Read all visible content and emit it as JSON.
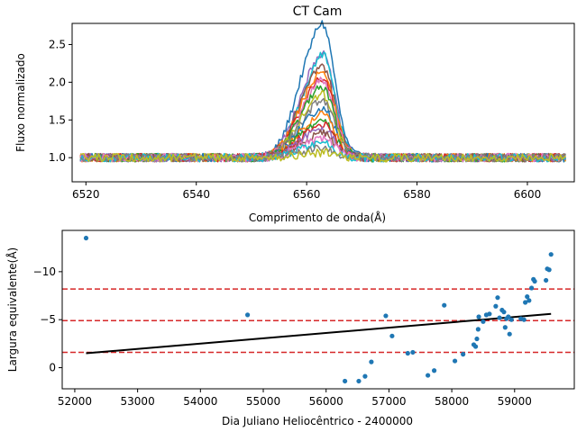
{
  "chart_data": [
    {
      "type": "line",
      "title": "CT Cam",
      "xlabel": "Comprimento de onda(Å)",
      "ylabel": "Fluxo normalizado",
      "xlim": [
        6517.5,
        6608.5
      ],
      "ylim": [
        0.68,
        2.78
      ],
      "x_ticks": [
        6520,
        6540,
        6560,
        6580,
        6600
      ],
      "y_ticks": [
        1.0,
        1.5,
        2.0,
        2.5
      ],
      "x_tick_labels": [
        "6520",
        "6540",
        "6560",
        "6580",
        "6600"
      ],
      "y_tick_labels": [
        "1.0",
        "1.5",
        "2.0",
        "2.5"
      ],
      "grid": false,
      "wavelength_range": [
        6519,
        6607
      ],
      "line_center": 6562,
      "line_widths_sigma": [
        3.0,
        1.8
      ],
      "profiles": [
        {
          "color": "#1f77b4",
          "peak_height": 1.65,
          "secondary_peak": 1.58
        },
        {
          "color": "#9467bd",
          "peak_height": 1.3,
          "secondary_peak": 1.2
        },
        {
          "color": "#17becf",
          "peak_height": 1.2,
          "secondary_peak": 1.3
        },
        {
          "color": "#8c564b",
          "peak_height": 1.15,
          "secondary_peak": 1.05
        },
        {
          "color": "#ff7f0e",
          "peak_height": 1.08,
          "secondary_peak": 1.0
        },
        {
          "color": "#d62728",
          "peak_height": 1.0,
          "secondary_peak": 0.92
        },
        {
          "color": "#e377c2",
          "peak_height": 0.95,
          "secondary_peak": 0.9
        },
        {
          "color": "#2ca02c",
          "peak_height": 0.88,
          "secondary_peak": 0.8
        },
        {
          "color": "#bcbd22",
          "peak_height": 0.8,
          "secondary_peak": 0.72
        },
        {
          "color": "#7f7f7f",
          "peak_height": 0.72,
          "secondary_peak": 0.65
        },
        {
          "color": "#1f77b4",
          "peak_height": 0.62,
          "secondary_peak": 0.58
        },
        {
          "color": "#ff7f0e",
          "peak_height": 0.55,
          "secondary_peak": 0.5
        },
        {
          "color": "#2ca02c",
          "peak_height": 0.48,
          "secondary_peak": 0.42
        },
        {
          "color": "#d62728",
          "peak_height": 0.42,
          "secondary_peak": 0.38
        },
        {
          "color": "#9467bd",
          "peak_height": 0.36,
          "secondary_peak": 0.33
        },
        {
          "color": "#8c564b",
          "peak_height": 0.3,
          "secondary_peak": 0.28
        },
        {
          "color": "#e377c2",
          "peak_height": 0.25,
          "secondary_peak": 0.22
        },
        {
          "color": "#17becf",
          "peak_height": 0.18,
          "secondary_peak": 0.16
        },
        {
          "color": "#7f7f7f",
          "peak_height": 0.12,
          "secondary_peak": 0.1
        },
        {
          "color": "#bcbd22",
          "peak_height": 0.06,
          "secondary_peak": 0.05
        }
      ]
    },
    {
      "type": "scatter",
      "xlabel": "Dia Juliano Heliocêntrico - 2400000",
      "ylabel": "Largura equivalente(Å)",
      "xlim": [
        51800,
        59950
      ],
      "ylim": [
        2.2,
        -14.3
      ],
      "y_inverted": true,
      "x_ticks": [
        52000,
        53000,
        54000,
        55000,
        56000,
        57000,
        58000,
        59000
      ],
      "y_ticks": [
        0,
        -5,
        -10
      ],
      "x_tick_labels": [
        "52000",
        "53000",
        "54000",
        "55000",
        "56000",
        "57000",
        "58000",
        "59000"
      ],
      "y_tick_labels": [
        "0",
        "−5",
        "−10"
      ],
      "grid": false,
      "point_color": "#1f77b4",
      "points": [
        [
          52180,
          -13.5
        ],
        [
          54750,
          -5.5
        ],
        [
          56300,
          1.4
        ],
        [
          56520,
          1.4
        ],
        [
          56620,
          0.9
        ],
        [
          56720,
          -0.6
        ],
        [
          56950,
          -5.4
        ],
        [
          57050,
          -3.3
        ],
        [
          57300,
          -1.5
        ],
        [
          57380,
          -1.6
        ],
        [
          57620,
          0.8
        ],
        [
          57720,
          0.3
        ],
        [
          57880,
          -6.5
        ],
        [
          58050,
          -0.7
        ],
        [
          58180,
          -1.4
        ],
        [
          58350,
          -2.4
        ],
        [
          58380,
          -2.2
        ],
        [
          58400,
          -3.0
        ],
        [
          58420,
          -4.0
        ],
        [
          58430,
          -5.3
        ],
        [
          58500,
          -4.8
        ],
        [
          58550,
          -5.5
        ],
        [
          58600,
          -5.6
        ],
        [
          58700,
          -6.4
        ],
        [
          58730,
          -7.3
        ],
        [
          58760,
          -5.2
        ],
        [
          58800,
          -6.0
        ],
        [
          58830,
          -5.8
        ],
        [
          58850,
          -4.2
        ],
        [
          58870,
          -5.1
        ],
        [
          58900,
          -5.3
        ],
        [
          58920,
          -3.5
        ],
        [
          58950,
          -5.0
        ],
        [
          59100,
          -5.1
        ],
        [
          59150,
          -5.0
        ],
        [
          59170,
          -6.8
        ],
        [
          59200,
          -7.4
        ],
        [
          59230,
          -7.0
        ],
        [
          59270,
          -8.3
        ],
        [
          59300,
          -9.2
        ],
        [
          59320,
          -9.0
        ],
        [
          59500,
          -9.1
        ],
        [
          59520,
          -10.3
        ],
        [
          59550,
          -10.2
        ],
        [
          59580,
          -11.8
        ]
      ],
      "trend_line": {
        "color": "#000000",
        "x": [
          52180,
          59580
        ],
        "y": [
          -1.5,
          -5.6
        ]
      },
      "reference_lines": {
        "color": "#d62728",
        "style": "dashed",
        "y": [
          -8.2,
          -4.9,
          -1.6
        ]
      }
    }
  ]
}
